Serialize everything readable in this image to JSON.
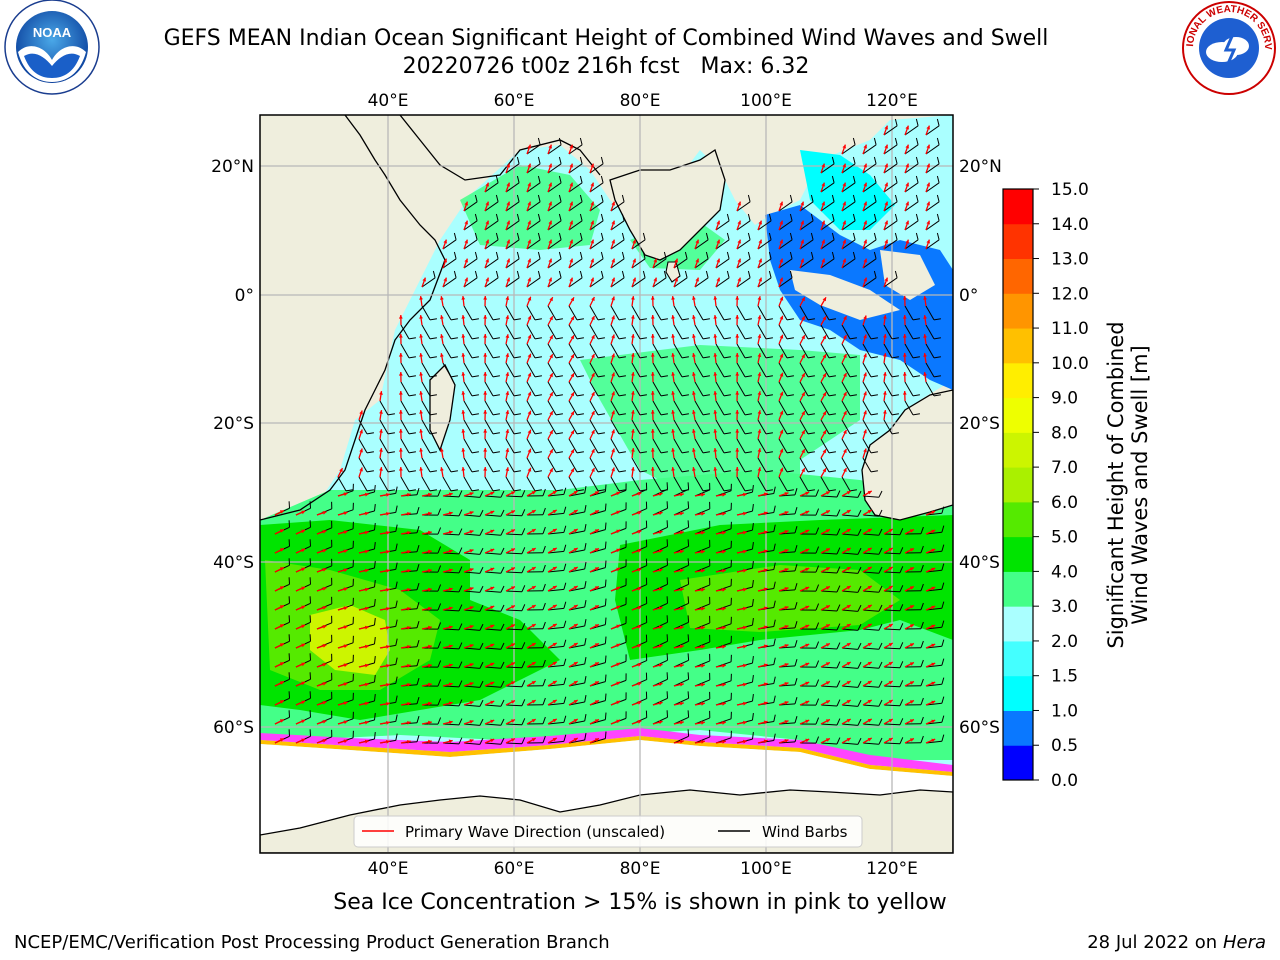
{
  "title": {
    "line1": "GEFS MEAN Indian Ocean Significant Height of Combined Wind Waves and Swell",
    "line2": "20220726 t00z 216h fcst   Max: 6.32"
  },
  "logos": {
    "left": {
      "name": "noaa-logo",
      "text": "NOAA"
    },
    "right": {
      "name": "national-weather-service-logo",
      "text": "NATIONAL WEATHER SERVICE"
    }
  },
  "map": {
    "lon_labels": [
      "40°E",
      "60°E",
      "80°E",
      "100°E",
      "120°E"
    ],
    "lat_labels": [
      "20°N",
      "0°",
      "20°S",
      "40°S",
      "60°S"
    ],
    "lon_range": [
      20,
      130
    ],
    "lat_range": [
      -75,
      27
    ],
    "land_color": "#efeedd",
    "ice_note_color": "#ff44ff"
  },
  "legend": {
    "primary_wave": "Primary Wave Direction (unscaled)",
    "wind_barbs": "Wind Barbs",
    "primary_wave_color": "#ff0000",
    "wind_barbs_color": "#000000"
  },
  "colorbar": {
    "title_line1": "Significant Height of Combined",
    "title_line2": "Wind Waves and Swell [m]",
    "ticks": [
      "0.0",
      "0.5",
      "1.0",
      "1.5",
      "2.0",
      "3.0",
      "4.0",
      "5.0",
      "6.0",
      "7.0",
      "8.0",
      "9.0",
      "10.0",
      "11.0",
      "12.0",
      "13.0",
      "14.0",
      "15.0"
    ],
    "colors": [
      "#0000ff",
      "#0a78ff",
      "#00ffff",
      "#44ffff",
      "#aaffff",
      "#44ff88",
      "#00e400",
      "#55ea00",
      "#aaf000",
      "#ccf500",
      "#eeff00",
      "#ffee00",
      "#ffc000",
      "#ff9500",
      "#ff6600",
      "#ff3300",
      "#ff0000"
    ]
  },
  "caption": "Sea Ice Concentration > 15% is shown in pink to yellow",
  "footer": {
    "left": "NCEP/EMC/Verification Post Processing Product Generation Branch",
    "right_date": "28 Jul 2022 on ",
    "right_host": "Hera"
  }
}
